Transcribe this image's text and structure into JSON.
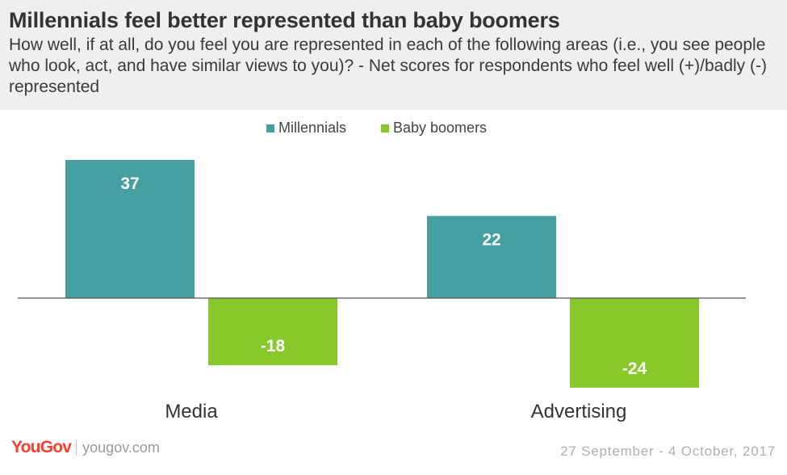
{
  "header": {
    "title": "Millennials feel better represented than baby boomers",
    "subtitle": "How well, if at all, do you feel you are represented in each of the following areas (i.e., you see people who look, act, and have similar views to you)? - Net scores for respondents who feel well (+)/badly (-) represented"
  },
  "chart_data": {
    "type": "bar",
    "categories": [
      "Media",
      "Advertising"
    ],
    "series": [
      {
        "name": "Millennials",
        "values": [
          37,
          22
        ],
        "color": "#459e9f"
      },
      {
        "name": "Baby boomers",
        "values": [
          -18,
          -24
        ],
        "color": "#87c92a"
      }
    ],
    "data_labels": [
      [
        "37",
        "22"
      ],
      [
        "-18",
        "-24"
      ]
    ],
    "legend_position": "top-center",
    "ylim": [
      -24,
      37
    ],
    "grid": false
  },
  "footer": {
    "logo_text": "YouGov",
    "url": "yougov.com",
    "date": "27 September - 4 October, 2017"
  }
}
